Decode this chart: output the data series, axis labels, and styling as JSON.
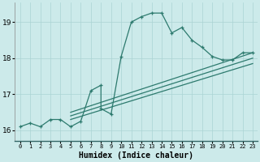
{
  "title": "",
  "xlabel": "Humidex (Indice chaleur)",
  "bg_color": "#cceaea",
  "line_color": "#2d7a6e",
  "grid_color": "#aad4d4",
  "xlim": [
    -0.5,
    23.5
  ],
  "ylim": [
    15.7,
    19.55
  ],
  "yticks": [
    16,
    17,
    18,
    19
  ],
  "xticks": [
    0,
    1,
    2,
    3,
    4,
    5,
    6,
    7,
    8,
    9,
    10,
    11,
    12,
    13,
    14,
    15,
    16,
    17,
    18,
    19,
    20,
    21,
    22,
    23
  ],
  "series": [
    [
      0,
      16.1
    ],
    [
      1,
      16.2
    ],
    [
      2,
      16.1
    ],
    [
      3,
      16.3
    ],
    [
      4,
      16.3
    ],
    [
      5,
      16.1
    ],
    [
      6,
      16.25
    ],
    [
      7,
      17.1
    ],
    [
      8,
      17.25
    ],
    [
      8,
      16.6
    ],
    [
      9,
      16.45
    ],
    [
      10,
      18.05
    ],
    [
      11,
      19.0
    ],
    [
      12,
      19.15
    ],
    [
      13,
      19.25
    ],
    [
      14,
      19.25
    ],
    [
      15,
      18.7
    ],
    [
      16,
      18.85
    ],
    [
      17,
      18.5
    ],
    [
      18,
      18.3
    ],
    [
      19,
      18.05
    ],
    [
      20,
      17.95
    ],
    [
      21,
      17.95
    ],
    [
      22,
      18.15
    ],
    [
      23,
      18.15
    ]
  ],
  "line2": [
    [
      5,
      16.5
    ],
    [
      23,
      18.15
    ]
  ],
  "line3": [
    [
      5,
      16.4
    ],
    [
      23,
      18.0
    ]
  ],
  "line4": [
    [
      5,
      16.3
    ],
    [
      23,
      17.85
    ]
  ]
}
